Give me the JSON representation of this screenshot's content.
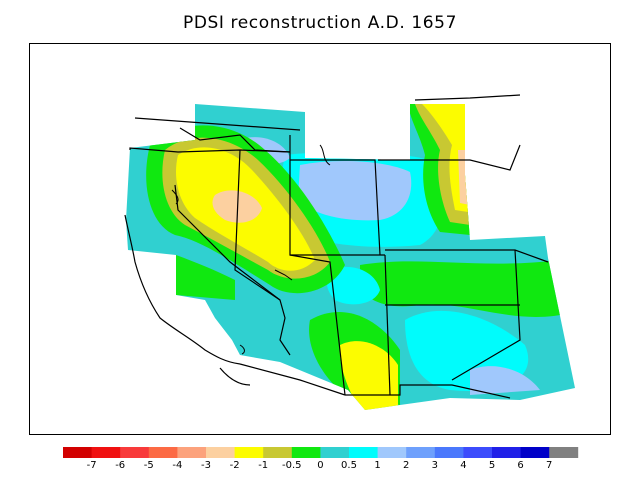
{
  "title": "PDSI reconstruction A.D. 1657",
  "legend": {
    "colors": [
      "#d20000",
      "#f01010",
      "#f83a3a",
      "#fc6a44",
      "#fca27c",
      "#fcd0a0",
      "#fcfc00",
      "#c8c832",
      "#10e810",
      "#30d0d0",
      "#00fcfc",
      "#a0c8fc",
      "#6ea0fc",
      "#4a78fc",
      "#3c4cfc",
      "#2020e8",
      "#0000c8",
      "#808080"
    ],
    "labels": [
      "-7",
      "-6",
      "-5",
      "-4",
      "-3",
      "-2",
      "-1",
      "-0.5",
      "0",
      "0.5",
      "1",
      "2",
      "3",
      "4",
      "5",
      "6",
      "7"
    ]
  }
}
